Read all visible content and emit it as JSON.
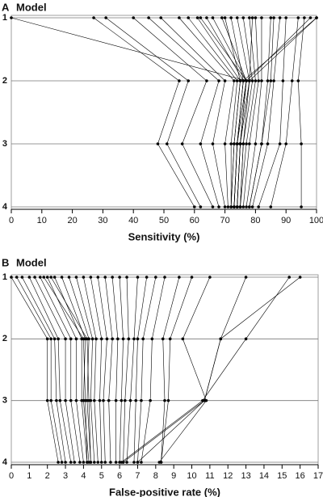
{
  "chart_data": [
    {
      "type": "line",
      "label": "A",
      "title": "Model",
      "xlabel": "Sensitivity  (%)",
      "color": "#000000",
      "categories": [
        "1",
        "2",
        "3",
        "4"
      ],
      "xlim": [
        0,
        100
      ],
      "xticks": [
        0,
        10,
        20,
        30,
        40,
        50,
        60,
        70,
        80,
        90,
        100
      ],
      "grid": true,
      "series": [
        {
          "values": [
            0,
            77,
            75,
            74
          ]
        },
        {
          "values": [
            100,
            78,
            76,
            75
          ]
        },
        {
          "values": [
            100,
            76,
            74,
            73
          ]
        },
        {
          "values": [
            27,
            55,
            48,
            60
          ]
        },
        {
          "values": [
            31,
            58,
            51,
            62
          ]
        },
        {
          "values": [
            40,
            64,
            56,
            66
          ]
        },
        {
          "values": [
            45,
            68,
            62,
            68
          ]
        },
        {
          "values": [
            49,
            70,
            66,
            70
          ]
        },
        {
          "values": [
            55,
            73,
            70,
            71
          ]
        },
        {
          "values": [
            58,
            74,
            72,
            72
          ]
        },
        {
          "values": [
            61,
            75,
            73,
            72
          ]
        },
        {
          "values": [
            64,
            76,
            74,
            73
          ]
        },
        {
          "values": [
            66,
            77,
            74,
            73
          ]
        },
        {
          "values": [
            69,
            77,
            75,
            74
          ]
        },
        {
          "values": [
            72,
            76,
            74,
            73
          ]
        },
        {
          "values": [
            74,
            78,
            75,
            74
          ]
        },
        {
          "values": [
            76,
            79,
            76,
            75
          ]
        },
        {
          "values": [
            78,
            80,
            77,
            75
          ]
        },
        {
          "values": [
            80,
            81,
            78,
            76
          ]
        },
        {
          "values": [
            82,
            82,
            80,
            77
          ]
        },
        {
          "values": [
            85,
            84,
            82,
            78
          ]
        },
        {
          "values": [
            88,
            86,
            84,
            79
          ]
        },
        {
          "values": [
            90,
            89,
            88,
            81
          ]
        },
        {
          "values": [
            94,
            92,
            90,
            85
          ]
        },
        {
          "values": [
            96,
            94,
            95,
            95
          ]
        },
        {
          "values": [
            86,
            85,
            82,
            78
          ]
        },
        {
          "values": [
            79,
            78,
            75,
            74
          ]
        },
        {
          "values": [
            62,
            77,
            74,
            73
          ]
        },
        {
          "values": [
            98,
            77,
            75,
            74
          ]
        },
        {
          "values": [
            70,
            75,
            73,
            72
          ]
        }
      ]
    },
    {
      "type": "line",
      "label": "B",
      "title": "Model",
      "xlabel": "False-positive rate  (%)",
      "color": "#000000",
      "categories": [
        "1",
        "2",
        "3",
        "4"
      ],
      "xlim": [
        0,
        17
      ],
      "xticks": [
        0,
        1,
        2,
        3,
        4,
        5,
        6,
        7,
        8,
        9,
        10,
        11,
        12,
        13,
        14,
        15,
        16,
        17
      ],
      "grid": true,
      "series": [
        {
          "values": [
            0,
            2,
            2,
            2.6
          ]
        },
        {
          "values": [
            0.3,
            2.2,
            2.2,
            2.8
          ]
        },
        {
          "values": [
            0.6,
            2.4,
            2.5,
            3
          ]
        },
        {
          "values": [
            1,
            2.6,
            2.7,
            3.3
          ]
        },
        {
          "values": [
            1.3,
            3,
            3,
            3.5
          ]
        },
        {
          "values": [
            1.6,
            3.3,
            3.3,
            3.8
          ]
        },
        {
          "values": [
            2,
            3.6,
            3.6,
            4
          ]
        },
        {
          "values": [
            2.4,
            3.9,
            3.9,
            4.2
          ]
        },
        {
          "values": [
            2.8,
            4.1,
            4,
            4.3
          ]
        },
        {
          "values": [
            3.2,
            4.3,
            4.2,
            4.4
          ]
        },
        {
          "values": [
            3.6,
            4.5,
            4.4,
            4.6
          ]
        },
        {
          "values": [
            4,
            4.7,
            4.6,
            4.8
          ]
        },
        {
          "values": [
            4.4,
            5,
            4.9,
            5
          ]
        },
        {
          "values": [
            4.8,
            5.3,
            5.1,
            5.2
          ]
        },
        {
          "values": [
            5.2,
            5.6,
            5.4,
            5.5
          ]
        },
        {
          "values": [
            5.6,
            5.9,
            5.8,
            5.8
          ]
        },
        {
          "values": [
            6,
            6.2,
            6.1,
            6
          ]
        },
        {
          "values": [
            6.4,
            6.5,
            6.3,
            6.2
          ]
        },
        {
          "values": [
            7,
            6.8,
            6.6,
            6.4
          ]
        },
        {
          "values": [
            7.5,
            7,
            6.9,
            6.8
          ]
        },
        {
          "values": [
            8,
            7.3,
            7.2,
            7
          ]
        },
        {
          "values": [
            8.5,
            7.8,
            7.7,
            7.2
          ]
        },
        {
          "values": [
            9.3,
            8.4,
            8.5,
            8.3
          ]
        },
        {
          "values": [
            10,
            8.8,
            8.7,
            8.3
          ]
        },
        {
          "values": [
            11,
            9.5,
            10.8,
            8.2
          ]
        },
        {
          "values": [
            13,
            11.6,
            10.7,
            6.2
          ]
        },
        {
          "values": [
            15.4,
            13,
            10.6,
            6.1
          ]
        },
        {
          "values": [
            16,
            11.6,
            10.7,
            7
          ]
        },
        {
          "values": [
            1.8,
            4,
            4.1,
            4.2
          ]
        },
        {
          "values": [
            2.2,
            4.2,
            4.3,
            4.4
          ]
        }
      ]
    }
  ]
}
